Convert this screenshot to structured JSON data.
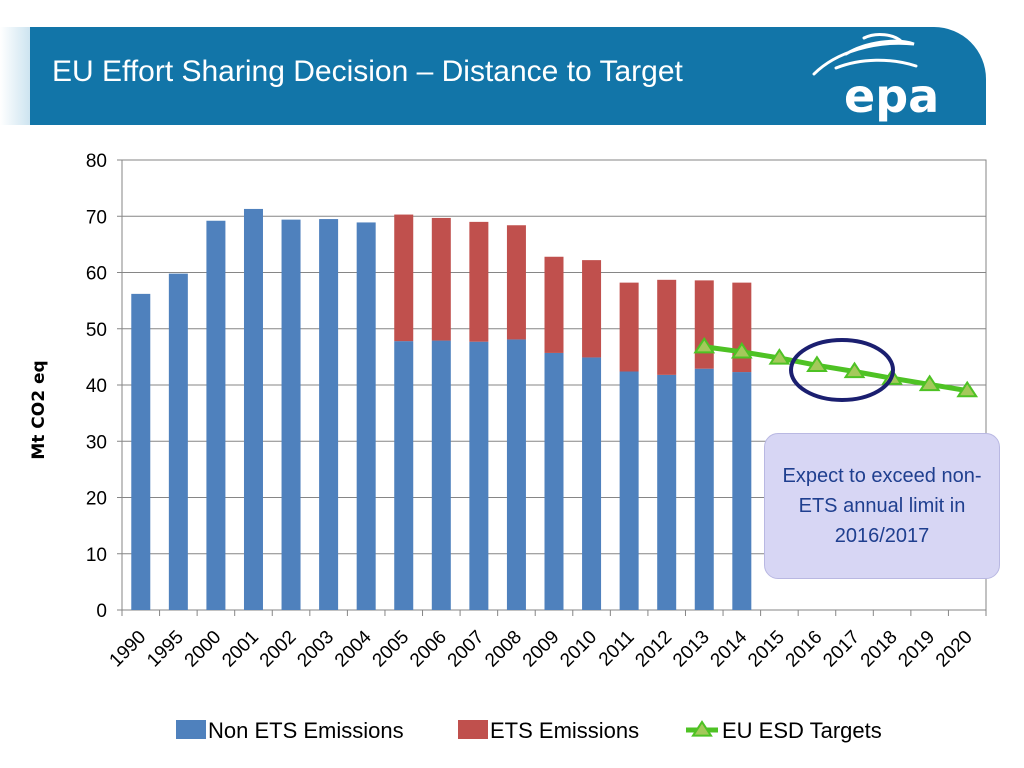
{
  "title": "EU Effort Sharing Decision – Distance to Target",
  "logo_text": "epa",
  "callout": "Expect to exceed non-ETS annual limit in 2016/2017",
  "colors": {
    "banner": "#1275a8",
    "non_ets": "#4f81bd",
    "ets": "#c0504d",
    "target_line": "#4ec224",
    "target_marker": "#a4c95b",
    "circle": "#1b1f70"
  },
  "legend": {
    "non_ets": "Non ETS Emissions",
    "ets": "ETS Emissions",
    "target": "EU ESD Targets"
  },
  "chart_data": {
    "type": "bar",
    "stacked": true,
    "title": "",
    "xlabel": "",
    "ylabel": "Mt CO2 eq",
    "ylim": [
      0,
      80
    ],
    "yticks": [
      0,
      10,
      20,
      30,
      40,
      50,
      60,
      70,
      80
    ],
    "grid": true,
    "legend_position": "bottom",
    "categories": [
      "1990",
      "1995",
      "2000",
      "2001",
      "2002",
      "2003",
      "2004",
      "2005",
      "2006",
      "2007",
      "2008",
      "2009",
      "2010",
      "2011",
      "2012",
      "2013",
      "2014",
      "2015",
      "2016",
      "2017",
      "2018",
      "2019",
      "2020"
    ],
    "series": [
      {
        "name": "Non ETS Emissions",
        "kind": "bar",
        "values": [
          56.2,
          59.8,
          69.2,
          71.3,
          69.4,
          69.5,
          68.9,
          47.8,
          47.9,
          47.7,
          48.1,
          45.7,
          44.9,
          42.4,
          41.8,
          42.9,
          42.3,
          null,
          null,
          null,
          null,
          null,
          null
        ]
      },
      {
        "name": "ETS Emissions",
        "kind": "bar",
        "values": [
          null,
          null,
          null,
          null,
          null,
          null,
          null,
          22.5,
          21.8,
          21.3,
          20.3,
          17.1,
          17.3,
          15.8,
          16.9,
          15.7,
          15.9,
          null,
          null,
          null,
          null,
          null,
          null
        ]
      },
      {
        "name": "EU ESD Targets",
        "kind": "line",
        "values": [
          null,
          null,
          null,
          null,
          null,
          null,
          null,
          null,
          null,
          null,
          null,
          null,
          null,
          null,
          null,
          46.8,
          45.9,
          44.8,
          43.5,
          42.4,
          41.2,
          40.1,
          39.0
        ]
      }
    ],
    "annotation_circle_around": [
      "2016",
      "2017"
    ]
  }
}
